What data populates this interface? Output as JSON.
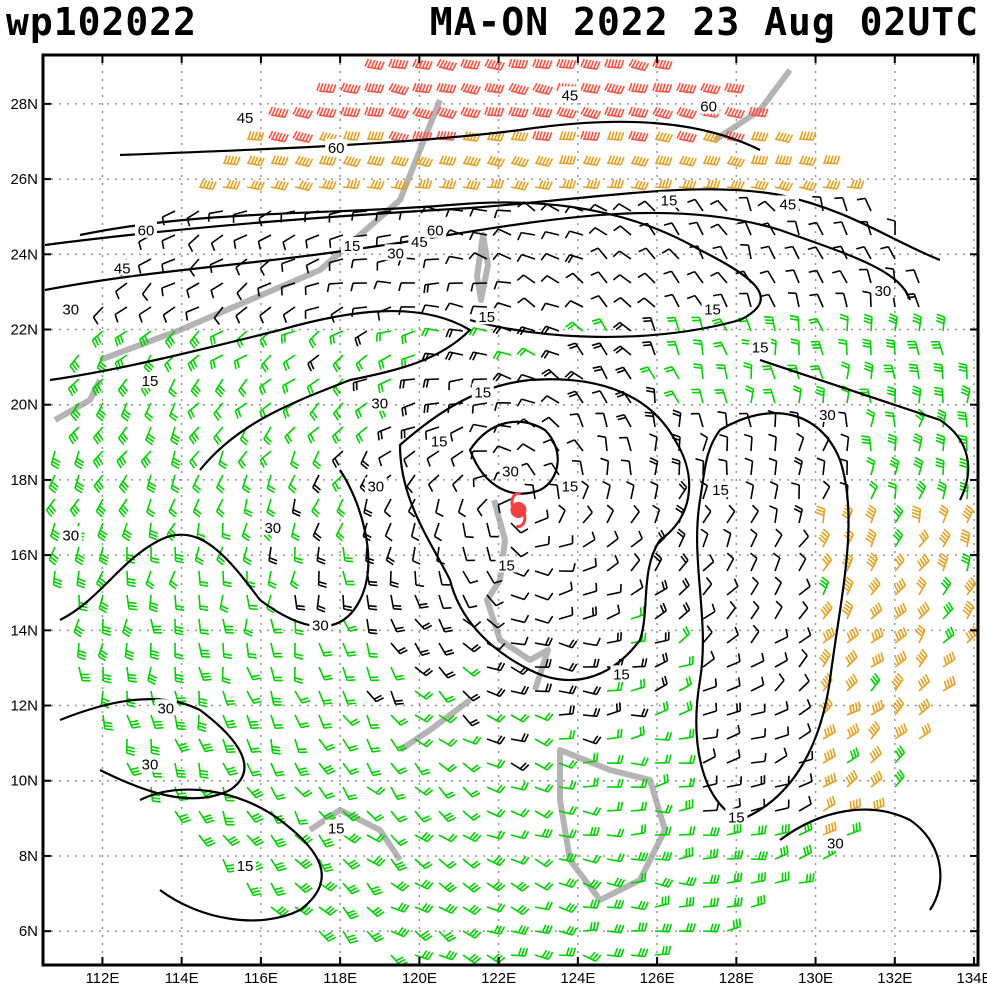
{
  "header": {
    "storm_id": "wp102022",
    "storm_info": "MA-ON 2022 23 Aug 02UTC"
  },
  "axes": {
    "lon_labels": [
      "112E",
      "114E",
      "116E",
      "118E",
      "120E",
      "122E",
      "124E",
      "126E",
      "128E",
      "130E",
      "132E",
      "134E"
    ],
    "lat_labels": [
      "28N",
      "26N",
      "24N",
      "22N",
      "20N",
      "18N",
      "16N",
      "14N",
      "12N",
      "10N",
      "8N",
      "6N"
    ],
    "lon_range": [
      110.5,
      134.1
    ],
    "lat_range": [
      5.1,
      29.3
    ]
  },
  "storm_center": {
    "lon": 122.5,
    "lat": 17.2,
    "marker_color": "#f04040"
  },
  "contour_labels": [
    {
      "text": "45",
      "lon": 115.6,
      "lat": 27.6
    },
    {
      "text": "45",
      "lon": 123.8,
      "lat": 28.2
    },
    {
      "text": "60",
      "lon": 127.3,
      "lat": 27.9
    },
    {
      "text": "60",
      "lon": 117.9,
      "lat": 26.8
    },
    {
      "text": "15",
      "lon": 126.3,
      "lat": 25.4
    },
    {
      "text": "45",
      "lon": 129.3,
      "lat": 25.3
    },
    {
      "text": "60",
      "lon": 113.1,
      "lat": 24.6
    },
    {
      "text": "15",
      "lon": 118.3,
      "lat": 24.2
    },
    {
      "text": "30",
      "lon": 119.4,
      "lat": 24.0
    },
    {
      "text": "45",
      "lon": 120.0,
      "lat": 24.3
    },
    {
      "text": "60",
      "lon": 120.4,
      "lat": 24.6
    },
    {
      "text": "45",
      "lon": 112.5,
      "lat": 23.6
    },
    {
      "text": "30",
      "lon": 131.7,
      "lat": 23.0
    },
    {
      "text": "30",
      "lon": 111.2,
      "lat": 22.5
    },
    {
      "text": "15",
      "lon": 121.7,
      "lat": 22.3
    },
    {
      "text": "15",
      "lon": 127.4,
      "lat": 22.5
    },
    {
      "text": "15",
      "lon": 128.6,
      "lat": 21.5
    },
    {
      "text": "15",
      "lon": 113.2,
      "lat": 20.6
    },
    {
      "text": "15",
      "lon": 121.6,
      "lat": 20.3
    },
    {
      "text": "30",
      "lon": 119.0,
      "lat": 20.0
    },
    {
      "text": "30",
      "lon": 130.3,
      "lat": 19.7
    },
    {
      "text": "15",
      "lon": 120.5,
      "lat": 19.0
    },
    {
      "text": "30",
      "lon": 122.3,
      "lat": 18.2
    },
    {
      "text": "30",
      "lon": 118.9,
      "lat": 17.8
    },
    {
      "text": "15",
      "lon": 123.8,
      "lat": 17.8
    },
    {
      "text": "15",
      "lon": 127.6,
      "lat": 17.7
    },
    {
      "text": "30",
      "lon": 116.3,
      "lat": 16.7
    },
    {
      "text": "30",
      "lon": 111.2,
      "lat": 16.5
    },
    {
      "text": "15",
      "lon": 122.2,
      "lat": 15.7
    },
    {
      "text": "30",
      "lon": 117.5,
      "lat": 14.1
    },
    {
      "text": "15",
      "lon": 125.1,
      "lat": 12.8
    },
    {
      "text": "30",
      "lon": 113.6,
      "lat": 11.9
    },
    {
      "text": "30",
      "lon": 113.2,
      "lat": 10.4
    },
    {
      "text": "15",
      "lon": 117.9,
      "lat": 8.7
    },
    {
      "text": "15",
      "lon": 128.0,
      "lat": 9.0
    },
    {
      "text": "30",
      "lon": 130.5,
      "lat": 8.3
    },
    {
      "text": "15",
      "lon": 115.6,
      "lat": 7.7
    }
  ],
  "palette": {
    "calm": "#000000",
    "moderate": "#00d200",
    "strong": "#e6a020",
    "very_strong": "#ff5040",
    "land": "#b4b4b4",
    "grid": "#969696"
  }
}
